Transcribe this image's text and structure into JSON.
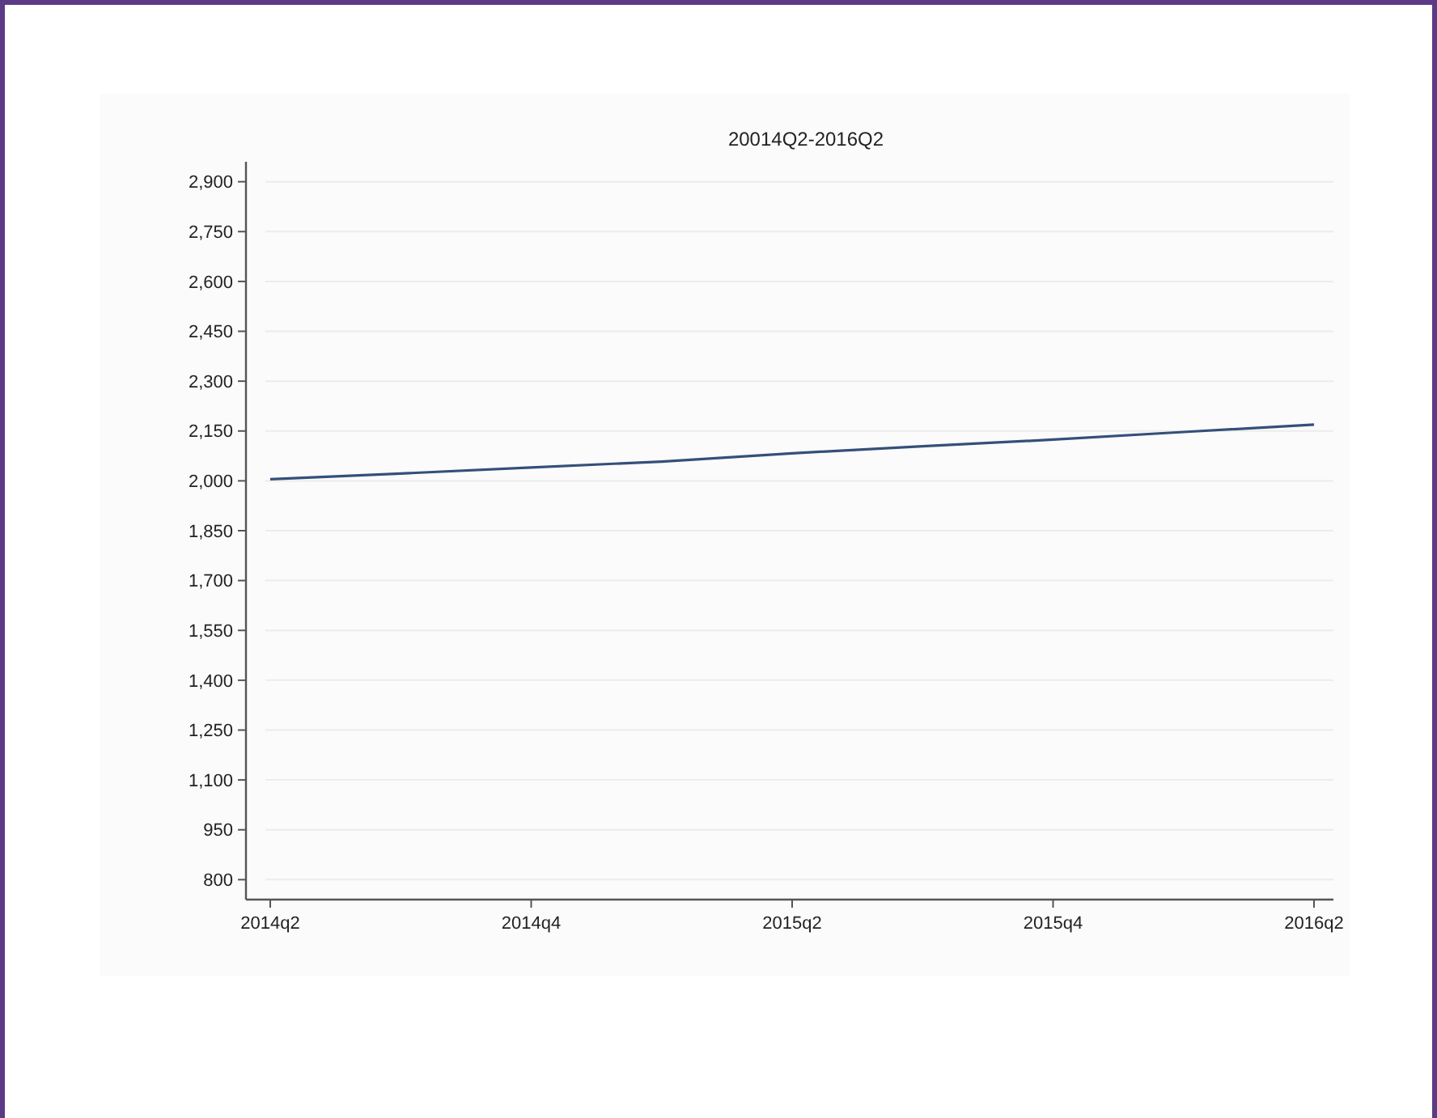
{
  "chart_data": {
    "type": "line",
    "title": "20014Q2-2016Q2",
    "categories": [
      "2014q2",
      null,
      "2014q4",
      null,
      "2015q2",
      null,
      "2015q4",
      null,
      "2016q2"
    ],
    "series": [
      {
        "color": "#34507a",
        "values": [
          2005,
          2022,
          2040,
          2058,
          2083,
          2104,
          2124,
          2147,
          2169
        ]
      }
    ],
    "ylim": [
      740,
      2960
    ],
    "yticks": [
      {
        "value": 800,
        "label": "800"
      },
      {
        "value": 950,
        "label": "950"
      },
      {
        "value": 1100,
        "label": "1,100"
      },
      {
        "value": 1250,
        "label": "1,250"
      },
      {
        "value": 1400,
        "label": "1,400"
      },
      {
        "value": 1550,
        "label": "1,550"
      },
      {
        "value": 1700,
        "label": "1,700"
      },
      {
        "value": 1850,
        "label": "1,850"
      },
      {
        "value": 2000,
        "label": "2,000"
      },
      {
        "value": 2150,
        "label": "2,150"
      },
      {
        "value": 2300,
        "label": "2,300"
      },
      {
        "value": 2450,
        "label": "2,450"
      },
      {
        "value": 2600,
        "label": "2,600"
      },
      {
        "value": 2750,
        "label": "2,750"
      },
      {
        "value": 2900,
        "label": "2,900"
      }
    ],
    "grid": "y",
    "marker": "none",
    "line_style": "solid"
  }
}
